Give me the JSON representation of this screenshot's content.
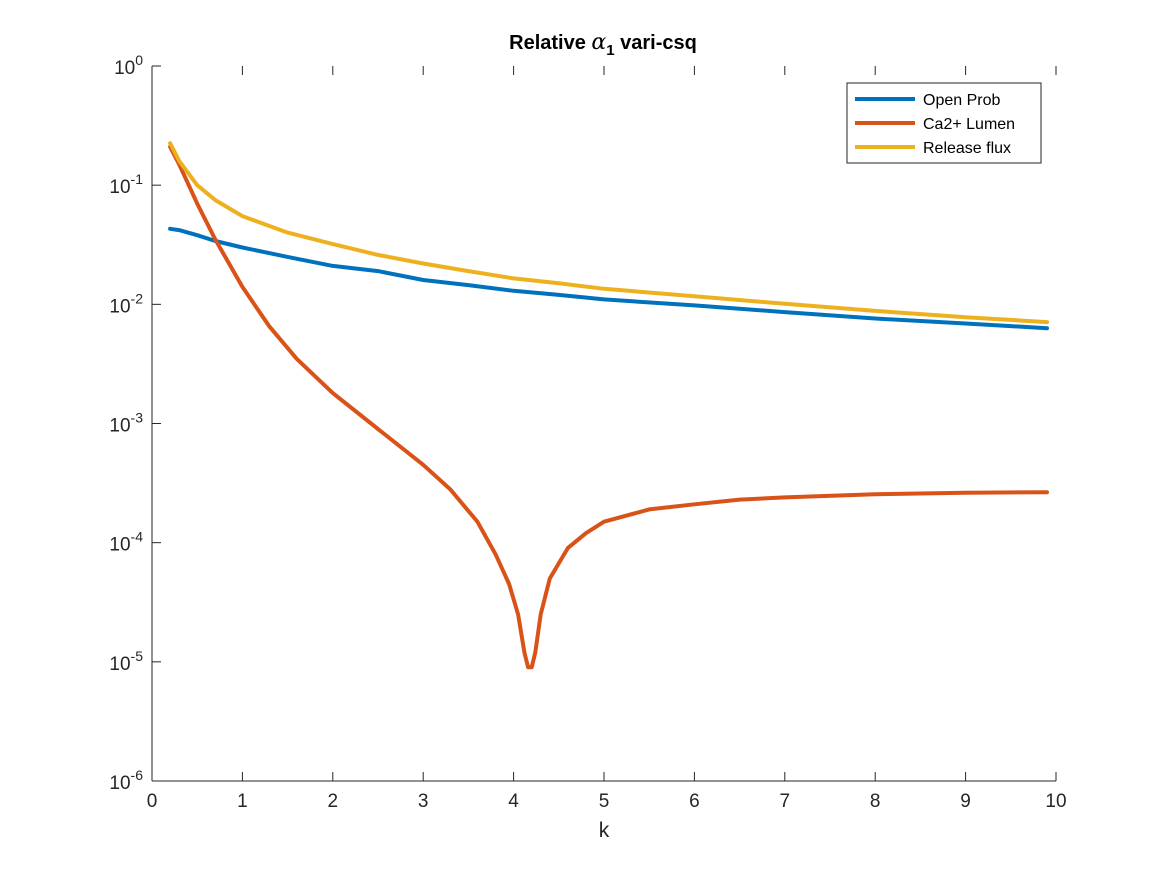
{
  "chart_data": {
    "type": "line",
    "title": {
      "prefix": "Relative ",
      "symbol": "α",
      "subscript": "1",
      "suffix": " vari-csq"
    },
    "xlabel": "k",
    "ylabel": "",
    "xlim": [
      0,
      10
    ],
    "ylim": [
      1e-06,
      1
    ],
    "y_scale": "log",
    "grid": false,
    "legend_position": "top-right",
    "x_ticks": [
      0,
      1,
      2,
      3,
      4,
      5,
      6,
      7,
      8,
      9,
      10
    ],
    "x_tick_labels": [
      "0",
      "1",
      "2",
      "3",
      "4",
      "5",
      "6",
      "7",
      "8",
      "9",
      "10"
    ],
    "y_ticks": [
      {
        "value": 1e-06,
        "base": "10",
        "exp": "-6"
      },
      {
        "value": 1e-05,
        "base": "10",
        "exp": "-5"
      },
      {
        "value": 0.0001,
        "base": "10",
        "exp": "-4"
      },
      {
        "value": 0.001,
        "base": "10",
        "exp": "-3"
      },
      {
        "value": 0.01,
        "base": "10",
        "exp": "-2"
      },
      {
        "value": 0.1,
        "base": "10",
        "exp": "-1"
      },
      {
        "value": 1,
        "base": "10",
        "exp": "0"
      }
    ],
    "series": [
      {
        "name": "Open Prob",
        "color": "#0072BD",
        "x": [
          0.2,
          0.3,
          0.5,
          0.7,
          1,
          1.5,
          2,
          2.5,
          3,
          3.5,
          4,
          4.5,
          5,
          6,
          7,
          8,
          9,
          9.9
        ],
        "y": [
          0.043,
          0.042,
          0.038,
          0.034,
          0.03,
          0.025,
          0.021,
          0.019,
          0.016,
          0.0145,
          0.013,
          0.012,
          0.011,
          0.0098,
          0.0086,
          0.0076,
          0.0069,
          0.0063
        ]
      },
      {
        "name": "Ca2+ Lumen",
        "color": "#D95319",
        "x": [
          0.2,
          0.3,
          0.5,
          0.7,
          1,
          1.3,
          1.6,
          2,
          2.5,
          3,
          3.3,
          3.6,
          3.8,
          3.95,
          4.05,
          4.12,
          4.16,
          4.2,
          4.24,
          4.3,
          4.4,
          4.6,
          4.8,
          5,
          5.5,
          6,
          6.5,
          7,
          8,
          9,
          9.9
        ],
        "y": [
          0.21,
          0.15,
          0.07,
          0.035,
          0.014,
          0.0065,
          0.0035,
          0.0018,
          0.0009,
          0.00045,
          0.00028,
          0.00015,
          8e-05,
          4.5e-05,
          2.5e-05,
          1.2e-05,
          9e-06,
          9e-06,
          1.2e-05,
          2.5e-05,
          5e-05,
          9e-05,
          0.00012,
          0.00015,
          0.00019,
          0.00021,
          0.00023,
          0.00024,
          0.000255,
          0.000262,
          0.000265
        ]
      },
      {
        "name": "Release flux",
        "color": "#EDB120",
        "x": [
          0.2,
          0.3,
          0.5,
          0.7,
          1,
          1.5,
          2,
          2.5,
          3,
          3.5,
          4,
          4.5,
          5,
          6,
          7,
          8,
          9,
          9.9
        ],
        "y": [
          0.225,
          0.16,
          0.1,
          0.075,
          0.055,
          0.04,
          0.032,
          0.026,
          0.022,
          0.019,
          0.0165,
          0.015,
          0.0135,
          0.0117,
          0.0101,
          0.0088,
          0.0078,
          0.0071
        ]
      }
    ]
  }
}
